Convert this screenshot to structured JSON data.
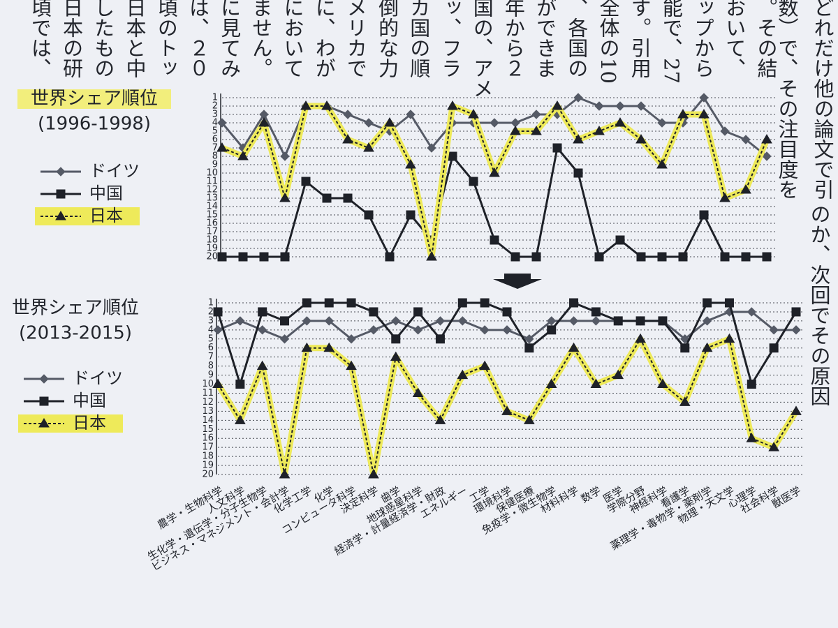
{
  "body_text": {
    "top_columns": [
      "。その結",
      "おいて、",
      "ップから",
      "能で、27",
      "す。引用",
      "全体の10",
      "、各国の",
      "ができま",
      "年から２",
      "国の、アメ",
      "ッ、フラ",
      "カ国の順",
      "倒的な力",
      "メリカで",
      "に、わが",
      "において",
      "ません。",
      "に見てみ",
      "は、２０",
      "頃のトッ",
      "日本と中",
      "したもの",
      "日本の研",
      "頃では、"
    ],
    "side_columns": [
      "どれだけ他の論文で引",
      "数）で、その注目度を",
      "のか、次回でその原因"
    ]
  },
  "chart_data": [
    {
      "type": "line",
      "title": "世界シェア順位",
      "subtitle": "(1996-1998)",
      "title_highlight": "#f2ee7c",
      "ylim": [
        1,
        20
      ],
      "invert_y": true,
      "grid": true,
      "yticks": [
        1,
        2,
        3,
        4,
        5,
        6,
        7,
        8,
        9,
        10,
        11,
        12,
        13,
        14,
        15,
        16,
        17,
        18,
        19,
        20
      ],
      "series": [
        {
          "name": "ドイツ",
          "color": "#555a66",
          "marker": "diamond",
          "dash": false,
          "values": [
            4,
            7,
            3,
            8,
            2,
            2,
            3,
            4,
            5,
            3,
            7,
            4,
            4,
            4,
            4,
            3,
            3,
            1,
            2,
            2,
            2,
            4,
            4,
            1,
            5,
            6,
            8
          ]
        },
        {
          "name": "中国",
          "color": "#1e2128",
          "marker": "square",
          "dash": false,
          "values": [
            20,
            20,
            20,
            20,
            11,
            13,
            13,
            15,
            20,
            15,
            18,
            8,
            11,
            18,
            20,
            20,
            7,
            10,
            20,
            18,
            20,
            20,
            20,
            15,
            20,
            20,
            20
          ]
        },
        {
          "name": "日本",
          "color": "#1e2128",
          "marker": "triangle",
          "dash": true,
          "highlight": "#eeea5a",
          "values": [
            7,
            8,
            4,
            13,
            2,
            2,
            6,
            7,
            4,
            9,
            20,
            2,
            3,
            10,
            5,
            5,
            2,
            6,
            5,
            4,
            6,
            9,
            3,
            3,
            13,
            12,
            6
          ]
        }
      ]
    },
    {
      "type": "line",
      "title": "世界シェア順位",
      "subtitle": "(2013-2015)",
      "ylim": [
        1,
        20
      ],
      "invert_y": true,
      "grid": true,
      "yticks": [
        1,
        2,
        3,
        4,
        5,
        6,
        7,
        8,
        9,
        10,
        11,
        12,
        13,
        14,
        15,
        16,
        17,
        18,
        19,
        20
      ],
      "categories": [
        "農学・生物科学",
        "人文科学",
        "生化学・遺伝学・分子生物学",
        "ビジネス・マネジメント・会計学",
        "化学工学",
        "化学",
        "コンピュータ科学",
        "決定科学",
        "歯学",
        "地球惑星科学",
        "経済学・計量経済学・財政",
        "エネルギー",
        "工学",
        "環境科学",
        "保健医療",
        "免疫学・微生物学",
        "材料科学",
        "数学",
        "医学",
        "学際分野",
        "神経科学",
        "看護学",
        "薬理学・毒物学・薬剤学",
        "物理・天文学",
        "心理学",
        "社会科学",
        "獣医学"
      ],
      "series": [
        {
          "name": "ドイツ",
          "color": "#555a66",
          "marker": "diamond",
          "dash": false,
          "values": [
            4,
            3,
            4,
            5,
            3,
            3,
            5,
            4,
            3,
            4,
            3,
            3,
            4,
            4,
            5,
            3,
            3,
            3,
            3,
            3,
            3,
            5,
            3,
            2,
            2,
            4,
            4
          ]
        },
        {
          "name": "中国",
          "color": "#1e2128",
          "marker": "square",
          "dash": false,
          "values": [
            2,
            10,
            2,
            3,
            1,
            1,
            1,
            2,
            5,
            2,
            5,
            1,
            1,
            2,
            6,
            4,
            1,
            2,
            3,
            3,
            3,
            6,
            1,
            1,
            10,
            6,
            2
          ]
        },
        {
          "name": "日本",
          "color": "#1e2128",
          "marker": "triangle",
          "dash": true,
          "highlight": "#eeea5a",
          "values": [
            10,
            14,
            8,
            20,
            6,
            6,
            8,
            20,
            7,
            11,
            14,
            9,
            8,
            13,
            14,
            10,
            6,
            10,
            9,
            5,
            10,
            12,
            6,
            5,
            16,
            17,
            13
          ]
        }
      ]
    }
  ]
}
